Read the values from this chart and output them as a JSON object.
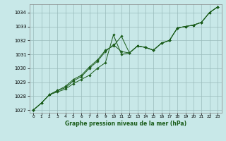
{
  "xlabel": "Graphe pression niveau de la mer (hPa)",
  "bg_color": "#c8e8e8",
  "plot_bg_color": "#c8e8e8",
  "grid_color": "#99bbbb",
  "line_color": "#1a5c1a",
  "marker_color": "#1a5c1a",
  "x_ticks": [
    0,
    1,
    2,
    3,
    4,
    5,
    6,
    7,
    8,
    9,
    10,
    11,
    12,
    13,
    14,
    15,
    16,
    17,
    18,
    19,
    20,
    21,
    22,
    23
  ],
  "ylim": [
    1026.8,
    1034.6
  ],
  "yticks": [
    1027,
    1028,
    1029,
    1030,
    1031,
    1032,
    1033,
    1034
  ],
  "series": [
    [
      1027.0,
      1027.5,
      1028.1,
      1028.3,
      1028.5,
      1028.9,
      1029.2,
      1029.5,
      1030.0,
      1030.4,
      1032.4,
      1031.0,
      1031.1,
      1031.6,
      1031.5,
      1031.3,
      1031.8,
      1032.0,
      1032.9,
      1033.0,
      1033.1,
      1033.3,
      1034.0,
      1034.4
    ],
    [
      1027.0,
      1027.5,
      1028.1,
      1028.4,
      1028.6,
      1029.1,
      1029.4,
      1030.0,
      1030.5,
      1031.2,
      1031.7,
      1031.2,
      1031.1,
      1031.6,
      1031.5,
      1031.3,
      1031.8,
      1032.0,
      1032.9,
      1033.0,
      1033.1,
      1033.3,
      1034.0,
      1034.4
    ],
    [
      1027.0,
      1027.5,
      1028.1,
      1028.4,
      1028.7,
      1029.2,
      1029.5,
      1030.1,
      1030.6,
      1031.3,
      1031.6,
      1032.3,
      1031.1,
      1031.6,
      1031.5,
      1031.3,
      1031.8,
      1032.0,
      1032.9,
      1033.0,
      1033.1,
      1033.3,
      1034.0,
      1034.4
    ]
  ]
}
